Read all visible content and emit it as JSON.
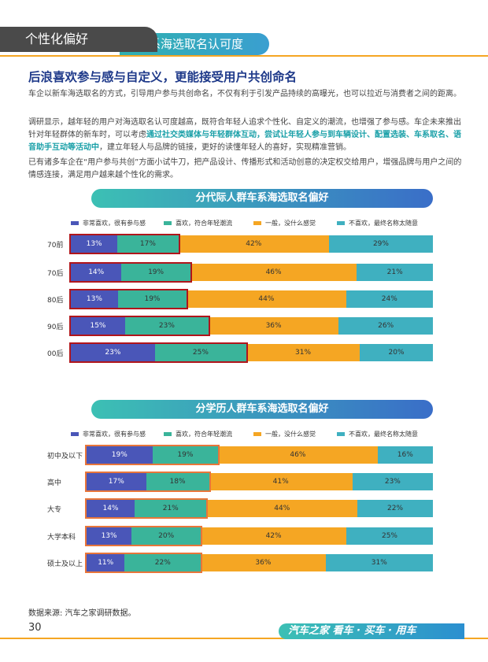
{
  "header": {
    "section": "个性化偏好",
    "subtitle": "车系海选取名认可度"
  },
  "headline": "后浪喜欢参与感与自定义，更能接受用户共创命名",
  "paragraphs": {
    "p1": "车企以新车海选取名的方式，引导用户参与共创命名，不仅有利于引发产品持续的高曝光，也可以拉近与消费者之间的距离。",
    "p2a": "调研显示，越年轻的用户对海选取名认可度越高，既符合年轻人追求个性化、自定义的潮流，也增强了参与感。车企未来推出针对年轻群体的新车时，可以考虑",
    "p2hl": "通过社交类媒体与年轻群体互动，尝试让年轻人参与到车辆设计、配置选装、车系取名、语音助手互动等活动中",
    "p2b": "，建立年轻人与品牌的链接，更好的读懂年轻人的喜好，实现精准营销。",
    "p3": "已有诸多车企在“用户参与共创”方面小试牛刀，把产品设计、传播形式和活动创意的决定权交给用户，增强品牌与用户之间的情感连接，满足用户越来越个性化的需求。"
  },
  "colors": {
    "very": "#4a56b8",
    "like": "#3ab49a",
    "neutral": "#f5a623",
    "dislike": "#3fb0c0"
  },
  "chart_data": [
    {
      "type": "bar",
      "stacked": true,
      "orientation": "horizontal",
      "title": "分代际人群车系海选取名偏好",
      "legend": [
        "非常喜欢，很有参与感",
        "喜欢，符合年轻潮流",
        "一般，没什么感觉",
        "不喜欢，最终名称太随意"
      ],
      "categories": [
        "70前",
        "70后",
        "80后",
        "90后",
        "00后"
      ],
      "series": [
        {
          "name": "非常喜欢，很有参与感",
          "values": [
            13,
            14,
            13,
            15,
            23
          ]
        },
        {
          "name": "喜欢，符合年轻潮流",
          "values": [
            17,
            19,
            19,
            23,
            25
          ]
        },
        {
          "name": "一般，没什么感觉",
          "values": [
            42,
            46,
            44,
            36,
            31
          ]
        },
        {
          "name": "不喜欢，最终名称太随意",
          "values": [
            29,
            21,
            24,
            26,
            20
          ]
        }
      ]
    },
    {
      "type": "bar",
      "stacked": true,
      "orientation": "horizontal",
      "title": "分学历人群车系海选取名偏好",
      "legend": [
        "非常喜欢，很有参与感",
        "喜欢，符合年轻潮流",
        "一般，没什么感觉",
        "不喜欢，最终名称太随意"
      ],
      "categories": [
        "初中及以下",
        "高中",
        "大专",
        "大学本科",
        "硕士及以上"
      ],
      "series": [
        {
          "name": "非常喜欢，很有参与感",
          "values": [
            19,
            17,
            14,
            13,
            11
          ]
        },
        {
          "name": "喜欢，符合年轻潮流",
          "values": [
            19,
            18,
            21,
            20,
            22
          ]
        },
        {
          "name": "一般，没什么感觉",
          "values": [
            46,
            41,
            44,
            42,
            36
          ]
        },
        {
          "name": "不喜欢，最终名称太随意",
          "values": [
            16,
            23,
            22,
            25,
            31
          ]
        }
      ]
    }
  ],
  "source": "数据来源: 汽车之家调研数据。",
  "page_number": "30",
  "footer_brand": "汽车之家 看车 · 买车 · 用车"
}
